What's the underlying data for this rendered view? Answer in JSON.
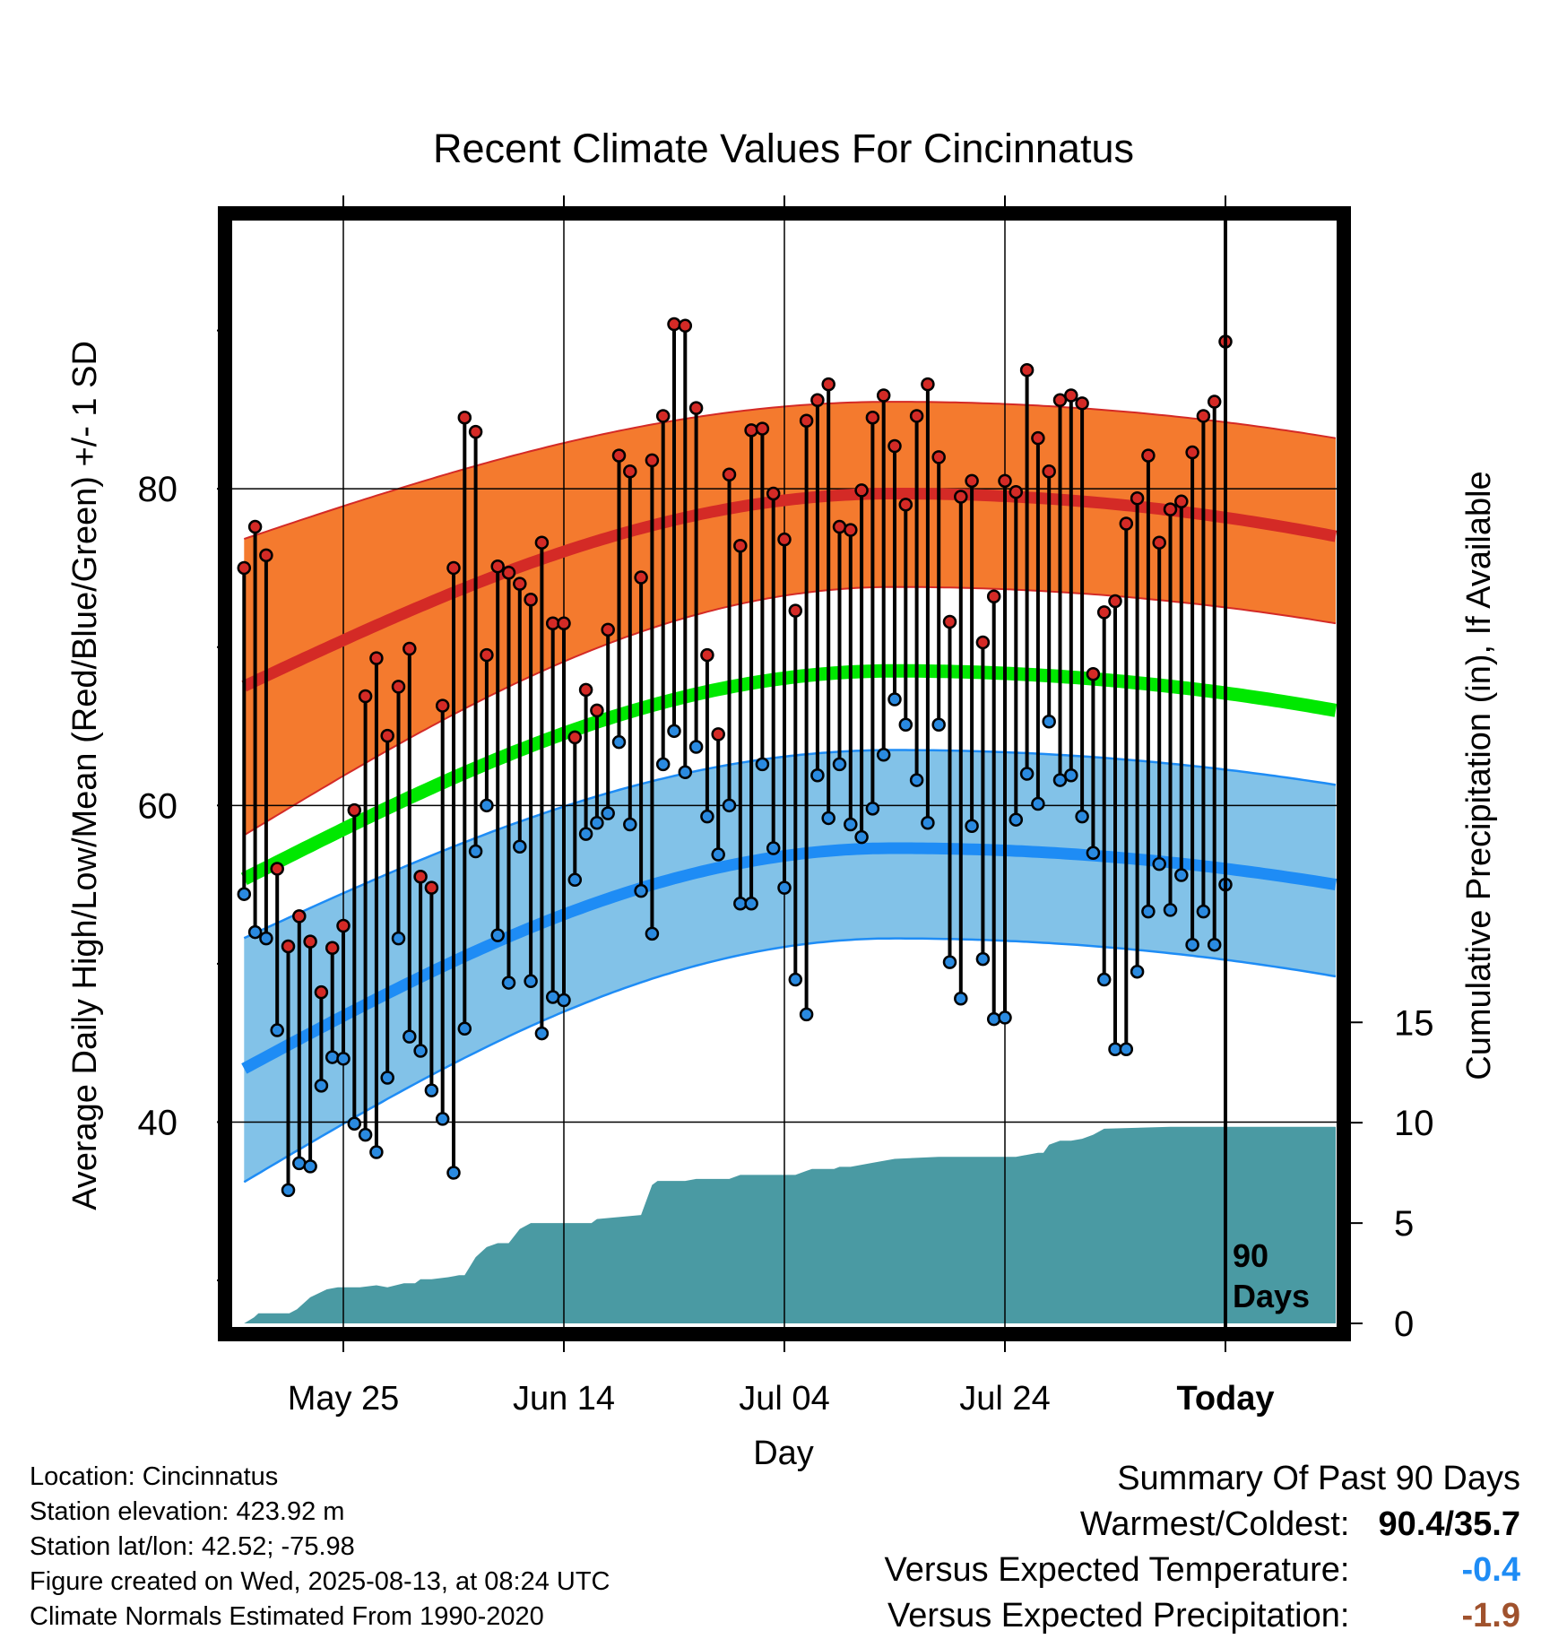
{
  "chart_data": {
    "type": "line",
    "title": "Recent Climate Values For Cincinnatus",
    "xlabel": "Day",
    "ylabel": "Average Daily High/Low/Mean (Red/Blue/Green) +/- 1 SD",
    "y2label": "Cumulative Precipitation (in), If Available",
    "ylim": [
      27,
      97
    ],
    "y2lim": [
      0,
      55
    ],
    "y_ticks": [
      "40",
      "60",
      "80"
    ],
    "y_minor_ticks": [
      30,
      50,
      70,
      90
    ],
    "y2_ticks": [
      "0",
      "5",
      "10",
      "15"
    ],
    "x_ticks": [
      "May 25",
      "Jun 14",
      "Jul 04",
      "Jul 24",
      "Today"
    ],
    "x_tick_days": [
      10,
      30,
      50,
      70,
      90
    ],
    "today_label": "90\nDays",
    "n_days": 100,
    "grid": true,
    "colors": {
      "high_band": "#f47a2e",
      "high_line": "#d42a26",
      "low_band": "#82c2e8",
      "low_line": "#1e8cf5",
      "mean_line": "#00e800",
      "precip": "#4a9aa3",
      "high_point": "#d42a26",
      "low_point": "#2a8ae0",
      "cold_value": "#1e8cf5",
      "dry_value": "#a0522d"
    },
    "normals": {
      "high_mean_start": 67.2,
      "high_mean_peak": 79.7,
      "high_mean_end": 77.0,
      "high_upper_start": 76.6,
      "high_upper_peak": 85.5,
      "high_upper_end": 83.2,
      "high_lower_start": 57.7,
      "high_lower_peak": 73.8,
      "high_lower_end": 71.5,
      "mean_start": 55.0,
      "mean_peak": 68.5,
      "mean_end": 66.0,
      "low_mean_start": 43.0,
      "low_mean_peak": 57.3,
      "low_mean_end": 55.0,
      "low_upper_start": 51.3,
      "low_upper_peak": 63.5,
      "low_upper_end": 61.3,
      "low_lower_start": 35.8,
      "low_lower_peak": 51.6,
      "low_lower_end": 49.2,
      "peak_day": 60
    },
    "series": [
      {
        "name": "High",
        "values": [
          75.0,
          77.6,
          75.8,
          56.0,
          51.1,
          53.0,
          51.4,
          48.2,
          51.0,
          52.4,
          59.7,
          66.9,
          69.3,
          64.4,
          67.5,
          69.9,
          55.5,
          54.8,
          66.3,
          75.0,
          84.5,
          83.6,
          69.5,
          75.1,
          74.7,
          74.0,
          73.0,
          76.6,
          71.5,
          71.5,
          64.3,
          67.3,
          66.0,
          71.1,
          82.1,
          81.1,
          74.4,
          81.8,
          84.6,
          90.4,
          90.3,
          85.1,
          69.5,
          64.5,
          80.9,
          76.4,
          83.7,
          83.8,
          79.7,
          76.8,
          72.3,
          84.3,
          85.6,
          86.6,
          77.6,
          77.4,
          79.9,
          84.5,
          85.9,
          82.7,
          79.0,
          84.6,
          86.6,
          82.0,
          71.6,
          79.5,
          80.5,
          70.3,
          73.2,
          80.5,
          79.8,
          87.5,
          83.2,
          81.1,
          85.6,
          85.9,
          85.4,
          68.3,
          72.2,
          72.9,
          77.8,
          79.4,
          82.1,
          76.6,
          78.7,
          79.2,
          82.3,
          84.6,
          85.5,
          89.3
        ]
      },
      {
        "name": "Low",
        "values": [
          54.4,
          52.0,
          51.6,
          45.8,
          35.7,
          37.4,
          37.2,
          42.3,
          44.1,
          44.0,
          39.9,
          39.2,
          38.1,
          42.8,
          51.6,
          45.4,
          44.5,
          42.0,
          40.2,
          36.8,
          45.9,
          57.1,
          60.0,
          51.8,
          48.8,
          57.4,
          48.9,
          45.6,
          47.9,
          47.7,
          55.3,
          58.2,
          58.9,
          59.5,
          64.0,
          58.8,
          54.6,
          51.9,
          62.6,
          64.7,
          62.1,
          63.7,
          59.3,
          56.9,
          60.0,
          53.8,
          53.8,
          62.6,
          57.3,
          54.8,
          49.0,
          46.8,
          61.9,
          59.2,
          62.6,
          58.8,
          58.0,
          59.8,
          63.2,
          66.7,
          65.1,
          61.6,
          58.9,
          65.1,
          50.1,
          47.8,
          58.7,
          50.3,
          46.5,
          46.6,
          59.1,
          62.0,
          60.1,
          65.3,
          61.6,
          61.9,
          59.3,
          57.0,
          49.0,
          44.6,
          44.6,
          49.5,
          53.3,
          56.3,
          53.4,
          55.6,
          51.2,
          53.3,
          51.2,
          55.0
        ]
      }
    ],
    "precip_cumulative": [
      [
        1,
        0.0
      ],
      [
        1.9,
        0.3
      ],
      [
        2.3,
        0.5
      ],
      [
        2.8,
        0.5
      ],
      [
        5.1,
        0.5
      ],
      [
        5.8,
        0.7
      ],
      [
        7,
        1.3
      ],
      [
        8.5,
        1.7
      ],
      [
        9.5,
        1.8
      ],
      [
        11.5,
        1.8
      ],
      [
        13,
        1.9
      ],
      [
        14,
        1.8
      ],
      [
        15.5,
        2.0
      ],
      [
        16.5,
        2.0
      ],
      [
        17,
        2.2
      ],
      [
        18,
        2.2
      ],
      [
        19.5,
        2.3
      ],
      [
        20.5,
        2.4
      ],
      [
        21,
        2.4
      ],
      [
        22,
        3.3
      ],
      [
        23,
        3.8
      ],
      [
        24,
        4.0
      ],
      [
        25,
        4.0
      ],
      [
        26,
        4.7
      ],
      [
        27,
        5.0
      ],
      [
        28,
        5.0
      ],
      [
        32.5,
        5.0
      ],
      [
        33,
        5.2
      ],
      [
        35,
        5.3
      ],
      [
        37,
        5.4
      ],
      [
        38,
        6.9
      ],
      [
        38.5,
        7.1
      ],
      [
        40,
        7.1
      ],
      [
        41,
        7.1
      ],
      [
        42,
        7.2
      ],
      [
        45,
        7.2
      ],
      [
        46,
        7.4
      ],
      [
        49,
        7.4
      ],
      [
        51,
        7.4
      ],
      [
        52,
        7.6
      ],
      [
        52.5,
        7.7
      ],
      [
        54.5,
        7.7
      ],
      [
        55,
        7.8
      ],
      [
        56,
        7.8
      ],
      [
        58,
        8.0
      ],
      [
        60,
        8.2
      ],
      [
        64,
        8.3
      ],
      [
        67,
        8.3
      ],
      [
        69,
        8.3
      ],
      [
        71,
        8.3
      ],
      [
        73,
        8.5
      ],
      [
        73.5,
        8.5
      ],
      [
        74,
        8.9
      ],
      [
        75,
        9.1
      ],
      [
        76,
        9.1
      ],
      [
        77,
        9.2
      ],
      [
        78,
        9.4
      ],
      [
        79,
        9.7
      ],
      [
        85,
        9.8
      ],
      [
        100,
        9.8
      ]
    ]
  },
  "footer": {
    "location": "Location: Cincinnatus",
    "elevation": "Station elevation: 423.92 m",
    "latlon": "Station lat/lon: 42.52; -75.98",
    "created": "Figure created on Wed, 2025-08-13, at 08:24 UTC",
    "normals": "Climate Normals Estimated From 1990-2020"
  },
  "summary": {
    "title": "Summary Of Past 90 Days",
    "warmest_label": "Warmest/Coldest:",
    "warmest_value": "90.4/35.7",
    "temp_label": "Versus Expected Temperature:",
    "temp_value": "-0.4",
    "precip_label": "Versus Expected Precipitation:",
    "precip_value": "-1.9"
  }
}
